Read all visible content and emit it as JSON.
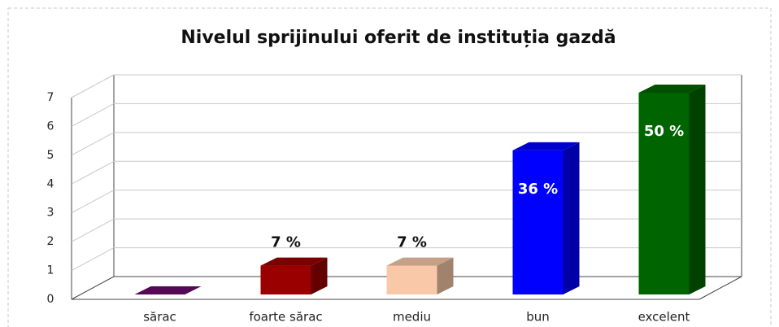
{
  "chart_data": {
    "type": "bar3d",
    "title": "Nivelul sprijinului oferit de instituția gazdă",
    "categories": [
      "sărac",
      "foarte sărac",
      "mediu",
      "bun",
      "excelent"
    ],
    "values": [
      0,
      1,
      1,
      5,
      7
    ],
    "annotations": [
      null,
      "7 %",
      "7 %",
      "36 %",
      "50 %"
    ],
    "colors": [
      "#6a0a6a",
      "#9a0000",
      "#f8c8a8",
      "#0000ff",
      "#006400"
    ],
    "ylim": [
      0,
      7
    ],
    "yticks": [
      0,
      1,
      2,
      3,
      4,
      5,
      6,
      7
    ],
    "grid": true
  }
}
